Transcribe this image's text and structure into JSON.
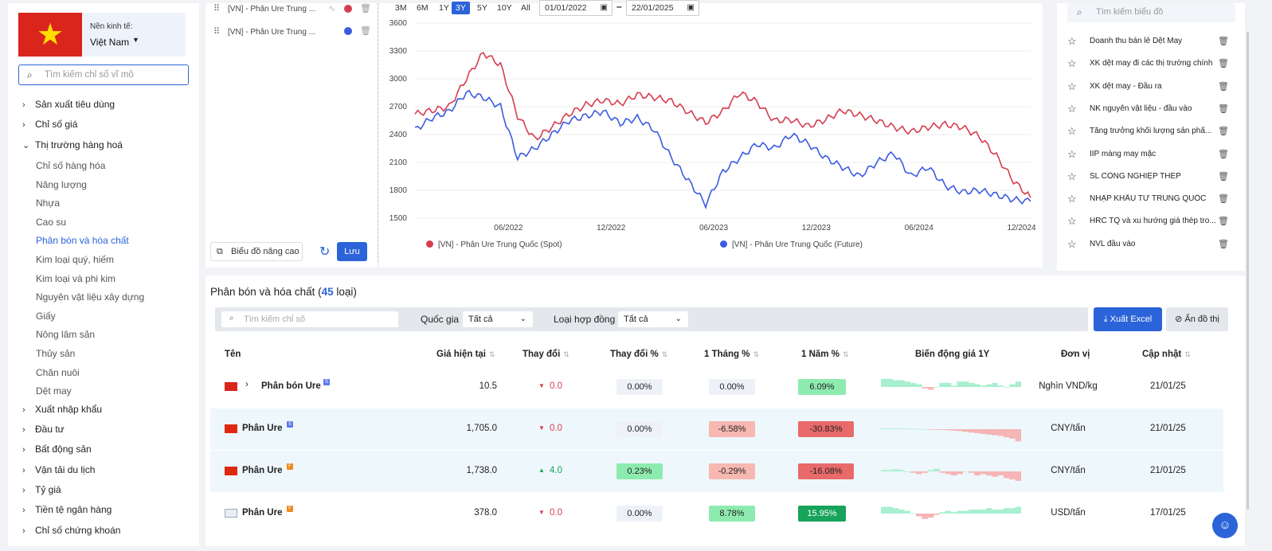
{
  "left": {
    "economy_label": "Nền kinh tế:",
    "economy_value": "Việt Nam",
    "search_placeholder": "Tìm kiếm chỉ số vĩ mô",
    "nav": [
      {
        "label": "Sản xuất tiêu dùng",
        "expanded": false
      },
      {
        "label": "Chỉ số giá",
        "expanded": false
      },
      {
        "label": "Thị trường hàng hoá",
        "expanded": true
      },
      {
        "label": "Xuất nhập khẩu",
        "expanded": false
      },
      {
        "label": "Đầu tư",
        "expanded": false
      },
      {
        "label": "Bất động sản",
        "expanded": false
      },
      {
        "label": "Vận tải du lịch",
        "expanded": false
      },
      {
        "label": "Tỷ giá",
        "expanded": false
      },
      {
        "label": "Tiền tệ ngân hàng",
        "expanded": false
      },
      {
        "label": "Chỉ số chứng khoán",
        "expanded": false
      }
    ],
    "sub": [
      "Chỉ số hàng hóa",
      "Năng lượng",
      "Nhựa",
      "Cao su",
      "Phân bón và hóa chất",
      "Kim loại quý, hiếm",
      "Kim loại và phi kim",
      "Nguyên vật liệu xây dựng",
      "Giấy",
      "Nông lâm sản",
      "Thủy sản",
      "Chăn nuôi",
      "Dệt may"
    ],
    "active_sub": "Phân bón và hóa chất"
  },
  "selected_series": [
    {
      "label": "[VN] - Phân Ure Trung ...",
      "color": "#d63d50"
    },
    {
      "label": "[VN] - Phân Ure Trung ...",
      "color": "#3b5be0"
    }
  ],
  "buttons": {
    "advanced": "Biểu đồ nâng cao",
    "save": "Lưu",
    "export": "Xuất Excel",
    "hide_chart": "Ẩn đồ thị"
  },
  "ranges": [
    "3M",
    "6M",
    "1Y",
    "3Y",
    "5Y",
    "10Y",
    "All"
  ],
  "active_range": "3Y",
  "date_from": "01/01/2022",
  "date_to": "22/01/2025",
  "chart_data": {
    "type": "line",
    "ylim": [
      1500,
      3600
    ],
    "yticks": [
      1500,
      1800,
      2100,
      2400,
      2700,
      3000,
      3300,
      3600
    ],
    "xticks": [
      "06/2022",
      "12/2022",
      "06/2023",
      "12/2023",
      "06/2024",
      "12/2024"
    ],
    "xrange": [
      "2022-01",
      "2025-01"
    ],
    "grid": true,
    "legend_position": "bottom",
    "series": [
      {
        "name": "[VN] - Phân Ure Trung Quốc (Spot)",
        "color": "#d63d50",
        "x": [
          "2022-01",
          "2022-02",
          "2022-03",
          "2022-04",
          "2022-05",
          "2022-06",
          "2022-07",
          "2022-08",
          "2022-09",
          "2022-10",
          "2022-11",
          "2022-12",
          "2023-01",
          "2023-02",
          "2023-03",
          "2023-04",
          "2023-05",
          "2023-06",
          "2023-07",
          "2023-08",
          "2023-09",
          "2023-10",
          "2023-11",
          "2023-12",
          "2024-01",
          "2024-02",
          "2024-03",
          "2024-04",
          "2024-05",
          "2024-06",
          "2024-07",
          "2024-08",
          "2024-09",
          "2024-10",
          "2024-11",
          "2024-12",
          "2025-01"
        ],
        "values": [
          2620,
          2660,
          2700,
          3000,
          3280,
          3150,
          2600,
          2350,
          2480,
          2620,
          2720,
          2770,
          2730,
          2830,
          2800,
          2760,
          2640,
          2530,
          2650,
          2850,
          2750,
          2550,
          2560,
          2490,
          2560,
          2660,
          2610,
          2550,
          2480,
          2430,
          2480,
          2510,
          2480,
          2380,
          2170,
          1900,
          1720
        ]
      },
      {
        "name": "[VN] - Phân Ure Trung Quốc (Future)",
        "color": "#3b5be0",
        "x": [
          "2022-01",
          "2022-02",
          "2022-03",
          "2022-04",
          "2022-05",
          "2022-06",
          "2022-07",
          "2022-08",
          "2022-09",
          "2022-10",
          "2022-11",
          "2022-12",
          "2023-01",
          "2023-02",
          "2023-03",
          "2023-04",
          "2023-05",
          "2023-06",
          "2023-07",
          "2023-08",
          "2023-09",
          "2023-10",
          "2023-11",
          "2023-12",
          "2024-01",
          "2024-02",
          "2024-03",
          "2024-04",
          "2024-05",
          "2024-06",
          "2024-07",
          "2024-08",
          "2024-09",
          "2024-10",
          "2024-11",
          "2024-12",
          "2025-01"
        ],
        "values": [
          2450,
          2580,
          2650,
          2850,
          2800,
          2700,
          2150,
          2250,
          2400,
          2550,
          2600,
          2650,
          2520,
          2580,
          2450,
          2150,
          1900,
          1650,
          2000,
          2150,
          2300,
          2250,
          2400,
          2300,
          2150,
          2050,
          1950,
          2100,
          2200,
          1950,
          2050,
          1850,
          1780,
          1800,
          1750,
          1700,
          1680
        ]
      }
    ]
  },
  "favorites": [
    "Doanh thu bán lẻ Dệt May",
    "XK dệt may đi các thị trường chính",
    "XK dệt may - Đầu ra",
    "NK nguyên vật liệu - đầu vào",
    "Tăng trưởng khối lượng sản phẩ...",
    "IIP màng may mặc",
    "SL CÔNG NGHIỆP THÉP",
    "NHẬP KHẨU TỪ TRUNG QUỐC",
    "HRC TQ và xu hướng giá thép tro...",
    "NVL đầu vào"
  ],
  "favorites_search_placeholder": "Tìm kiếm biểu đồ",
  "table": {
    "title": "Phân bón và hóa chất",
    "count": "45",
    "count_suffix": "loại)",
    "search_placeholder": "Tìm kiếm chỉ số",
    "country_label": "Quốc gia",
    "country_value": "Tất cả",
    "contract_label": "Loại hợp đồng",
    "contract_value": "Tất cả",
    "headers": [
      "Tên",
      "Giá hiện tại",
      "Thay đổi",
      "Thay đổi %",
      "1 Tháng %",
      "1 Năm %",
      "Biến động giá 1Y",
      "Đơn vị",
      "Cập nhật"
    ],
    "rows": [
      {
        "flag": "vn",
        "name": "Phân bón Ure",
        "tag": "S",
        "tag_color": "#5b7be8",
        "price": "10.5",
        "change": "0.0",
        "dir": "down",
        "pct": "0.00%",
        "m1": "0.00%",
        "y1": "6.09%",
        "unit": "Nghìn VND/kg",
        "updated": "21/01/25",
        "bg": "#ffffff",
        "spark": [
          0.6,
          0.6,
          0.5,
          0.5,
          0.4,
          0.3,
          0.2,
          -0.1,
          -0.2,
          0.0,
          0.3,
          0.3,
          0.1,
          0.4,
          0.4,
          0.3,
          0.2,
          0.1,
          0.2,
          0.3,
          0.1,
          0.0,
          0.2,
          0.4
        ]
      },
      {
        "flag": "cn",
        "name": "Phân Ure",
        "tag": "S",
        "tag_color": "#5b7be8",
        "price": "1,705.0",
        "change": "0.0",
        "dir": "down",
        "pct": "0.00%",
        "m1": "-6.58%",
        "y1": "-30.83%",
        "unit": "CNY/tấn",
        "updated": "21/01/25",
        "bg": "#eef7fb",
        "spark": [
          0.05,
          0.05,
          0.06,
          0.04,
          0.03,
          0.02,
          0.02,
          0.0,
          -0.02,
          -0.04,
          -0.06,
          -0.08,
          -0.1,
          -0.14,
          -0.2,
          -0.25,
          -0.3,
          -0.35,
          -0.4,
          -0.45,
          -0.5,
          -0.6,
          -0.7,
          -0.9
        ]
      },
      {
        "flag": "cn",
        "name": "Phân Ure",
        "tag": "F",
        "tag_color": "#f08a1c",
        "price": "1,738.0",
        "change": "4.0",
        "dir": "up",
        "pct": "0.23%",
        "m1": "-0.29%",
        "y1": "-16.08%",
        "unit": "CNY/tấn",
        "updated": "21/01/25",
        "bg": "#eef7fb",
        "spark": [
          0.1,
          0.1,
          0.15,
          0.1,
          0.0,
          -0.1,
          -0.2,
          -0.1,
          0.1,
          0.2,
          -0.1,
          -0.2,
          -0.3,
          -0.2,
          0.0,
          -0.1,
          -0.3,
          -0.2,
          -0.3,
          -0.4,
          -0.3,
          -0.5,
          -0.6,
          -0.7
        ]
      },
      {
        "flag": "un",
        "name": "Phân Ure",
        "tag": "F",
        "tag_color": "#f08a1c",
        "price": "378.0",
        "change": "0.0",
        "dir": "down",
        "pct": "0.00%",
        "m1": "8.78%",
        "y1": "15.95%",
        "unit": "USD/tấn",
        "updated": "17/01/25",
        "bg": "#ffffff",
        "spark": [
          0.5,
          0.5,
          0.4,
          0.3,
          0.2,
          0.0,
          -0.2,
          -0.4,
          -0.3,
          -0.1,
          0.1,
          0.2,
          0.1,
          0.2,
          0.2,
          0.3,
          0.3,
          0.3,
          0.4,
          0.3,
          0.3,
          0.4,
          0.4,
          0.5
        ]
      }
    ]
  }
}
